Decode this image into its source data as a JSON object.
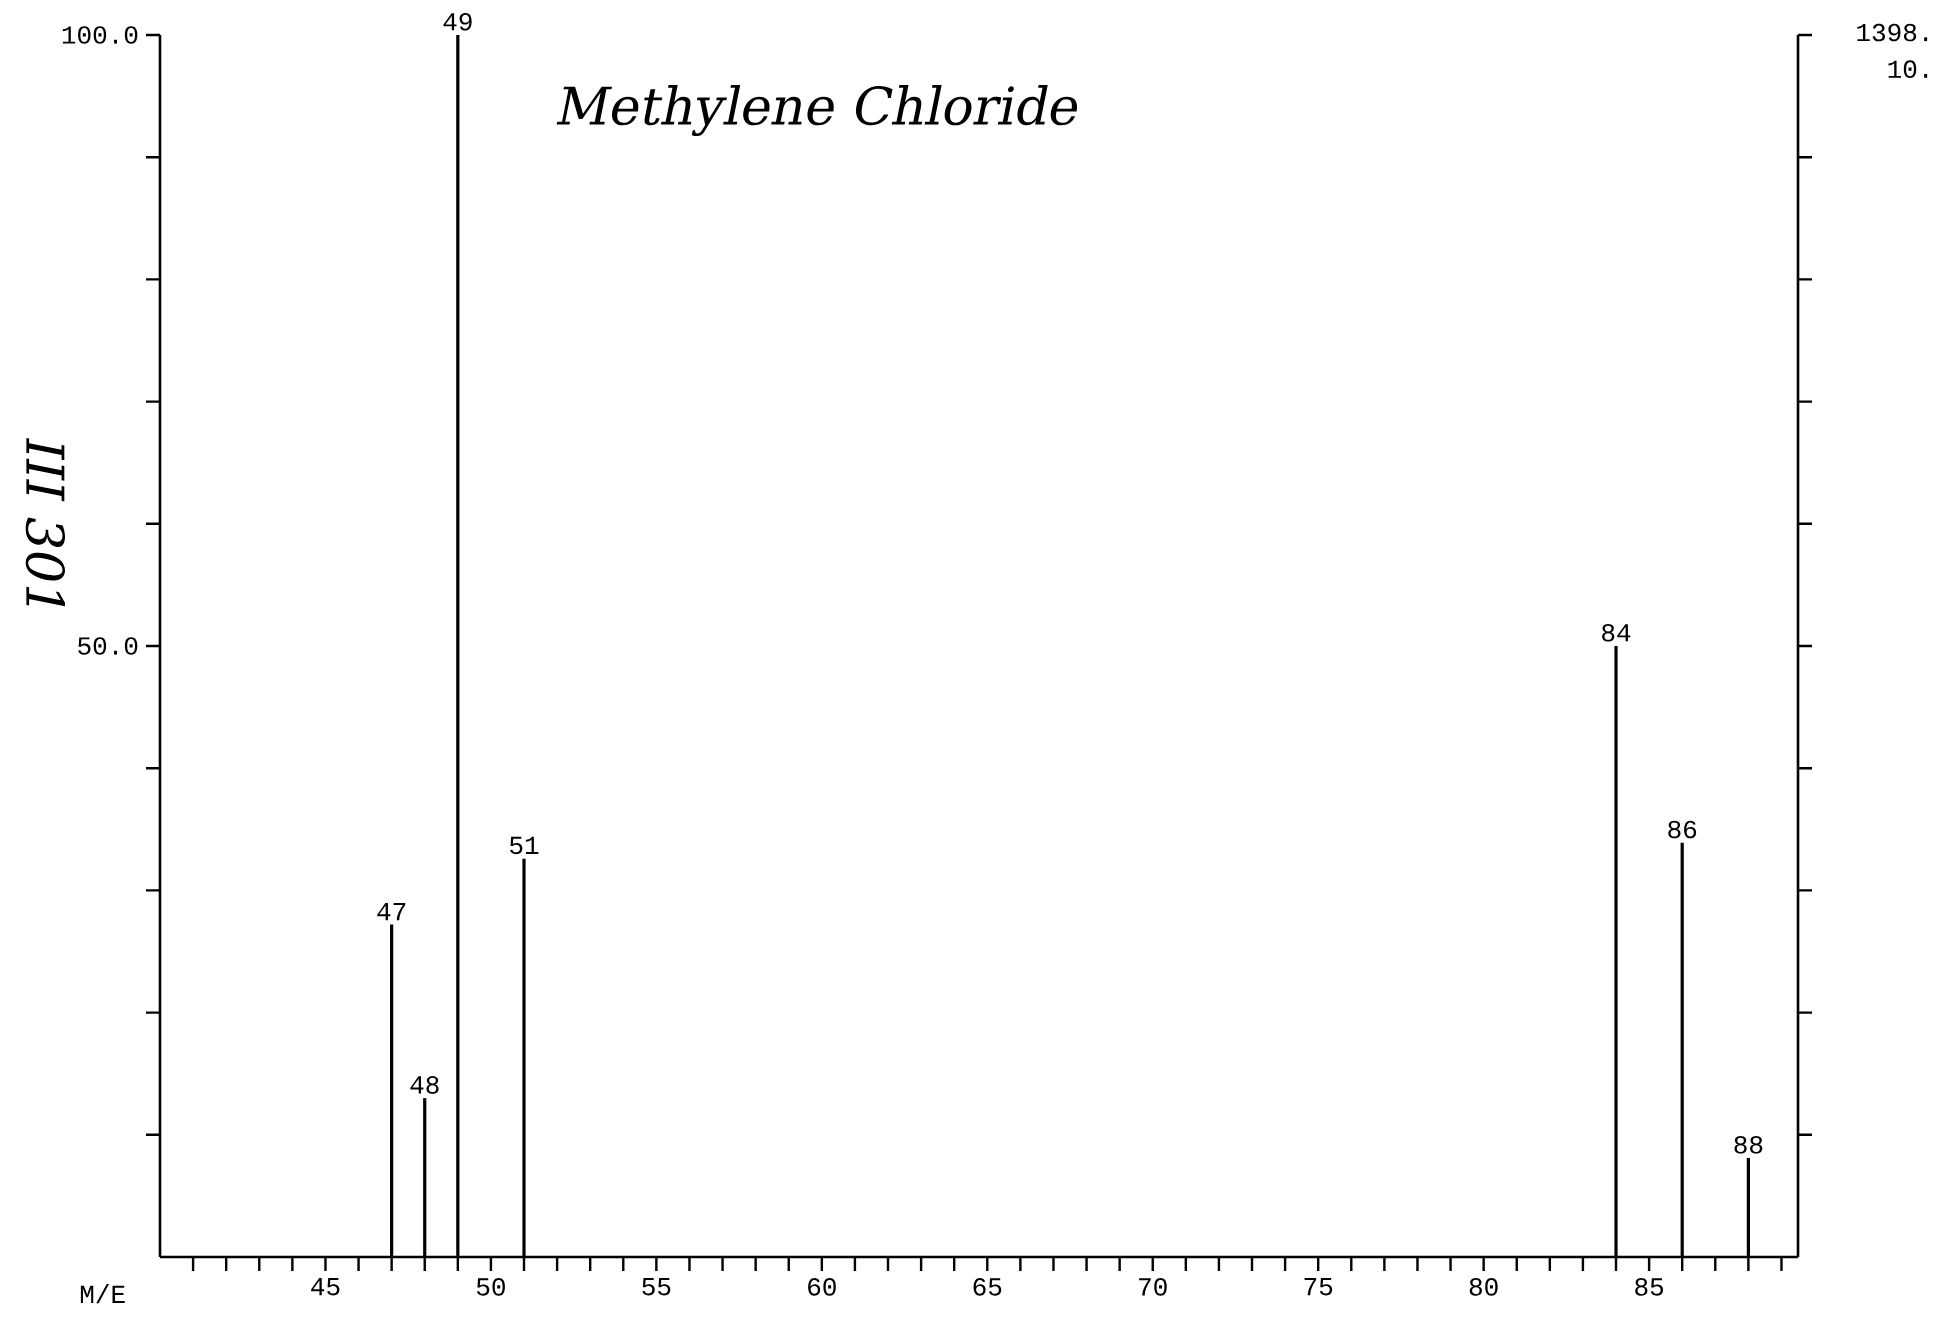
{
  "chart_data": {
    "type": "bar",
    "title": "Methylene Chloride",
    "xlabel": "M/E",
    "x": [
      47,
      48,
      49,
      51,
      84,
      86,
      88
    ],
    "values": [
      27.2,
      13.0,
      100,
      32.6,
      50.0,
      33.9,
      8.1
    ],
    "color": "#000000",
    "xlim": [
      40,
      89.5
    ],
    "xticks": [
      {
        "value": 41,
        "label": null
      },
      {
        "value": 42,
        "label": null
      },
      {
        "value": 43,
        "label": null
      },
      {
        "value": 44,
        "label": null
      },
      45,
      {
        "value": 46,
        "label": null
      },
      {
        "value": 47,
        "label": null
      },
      {
        "value": 48,
        "label": null
      },
      {
        "value": 49,
        "label": null
      },
      50,
      {
        "value": 51,
        "label": null
      },
      {
        "value": 52,
        "label": null
      },
      {
        "value": 53,
        "label": null
      },
      {
        "value": 54,
        "label": null
      },
      55,
      {
        "value": 56,
        "label": null
      },
      {
        "value": 57,
        "label": null
      },
      {
        "value": 58,
        "label": null
      },
      {
        "value": 59,
        "label": null
      },
      60,
      {
        "value": 61,
        "label": null
      },
      {
        "value": 62,
        "label": null
      },
      {
        "value": 63,
        "label": null
      },
      {
        "value": 64,
        "label": null
      },
      65,
      {
        "value": 66,
        "label": null
      },
      {
        "value": 67,
        "label": null
      },
      {
        "value": 68,
        "label": null
      },
      {
        "value": 69,
        "label": null
      },
      70,
      {
        "value": 71,
        "label": null
      },
      {
        "value": 72,
        "label": null
      },
      {
        "value": 73,
        "label": null
      },
      {
        "value": 74,
        "label": null
      },
      75,
      {
        "value": 76,
        "label": null
      },
      {
        "value": 77,
        "label": null
      },
      {
        "value": 78,
        "label": null
      },
      {
        "value": 79,
        "label": null
      },
      80,
      {
        "value": 81,
        "label": null
      },
      {
        "value": 82,
        "label": null
      },
      {
        "value": 83,
        "label": null
      },
      {
        "value": 84,
        "label": null
      },
      85,
      {
        "value": 86,
        "label": null
      },
      {
        "value": 87,
        "label": null
      },
      {
        "value": 88,
        "label": null
      },
      {
        "value": 89,
        "label": null
      }
    ],
    "ylim": [
      0,
      100
    ],
    "yticks": [
      {
        "value": 10,
        "label": null
      },
      {
        "value": 20,
        "label": null
      },
      {
        "value": 30,
        "label": null
      },
      {
        "value": 40,
        "label": null
      },
      {
        "value": 50,
        "label": "50.0"
      },
      {
        "value": 60,
        "label": null
      },
      {
        "value": 70,
        "label": null
      },
      {
        "value": 80,
        "label": null
      },
      {
        "value": 90,
        "label": null
      },
      {
        "value": 100,
        "label": "100.0"
      }
    ],
    "annotations": [
      "1398.",
      "10.",
      "III 301",
      {
        "text": "47",
        "x": 47,
        "y": 27.2
      },
      {
        "text": "48",
        "x": 48,
        "y": 13.0
      },
      {
        "text": "49",
        "x": 49,
        "y": 100
      },
      {
        "text": "51",
        "x": 51,
        "y": 32.6
      },
      {
        "text": "84",
        "x": 84,
        "y": 50.0
      },
      {
        "text": "86",
        "x": 86,
        "y": 33.9
      },
      {
        "text": "88",
        "x": 88,
        "y": 8.1
      }
    ],
    "grid": false
  }
}
